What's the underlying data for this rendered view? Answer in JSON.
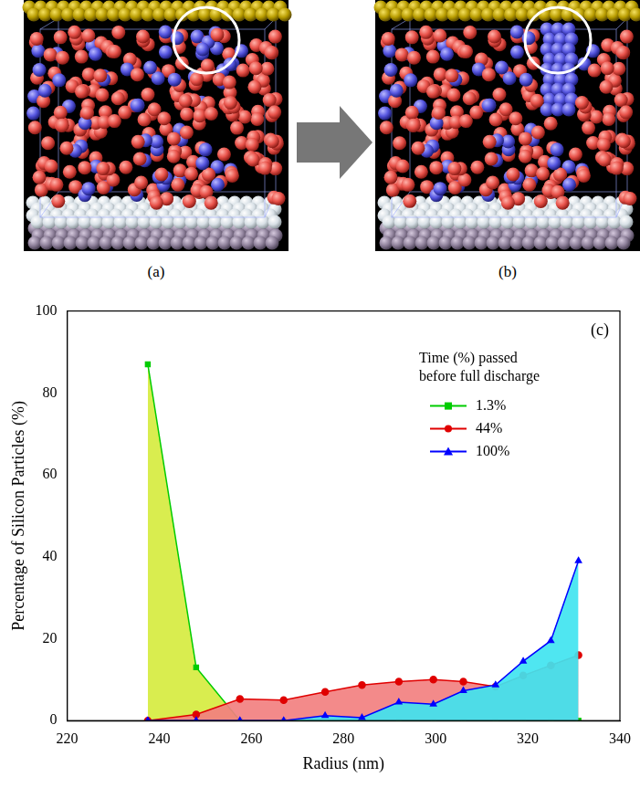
{
  "panels": [
    {
      "label": "(a)"
    },
    {
      "label": "(b)"
    }
  ],
  "chart_data": {
    "type": "area",
    "annotations": [
      "(c)"
    ],
    "x_label": "Radius (nm)",
    "y_label": "Percentage of Silicon Particles (%)",
    "legend_title": [
      "Time (%) passed",
      "before full discharge"
    ],
    "x": [
      237.5,
      248,
      257.5,
      267,
      276,
      284,
      292,
      299.5,
      306,
      313,
      319,
      325,
      331
    ],
    "series": [
      {
        "name": "1.3%",
        "color": "#00cc00",
        "marker": "square",
        "values": [
          87,
          13,
          0,
          0,
          0,
          0,
          0,
          0,
          0,
          0,
          0,
          0,
          0
        ]
      },
      {
        "name": "44%",
        "color": "#e00000",
        "marker": "circle",
        "values": [
          0,
          1.5,
          5.3,
          5,
          7,
          8.7,
          9.5,
          10,
          9.5,
          8.3,
          11,
          13.5,
          16
        ]
      },
      {
        "name": "100%",
        "color": "#0000ff",
        "marker": "triangle",
        "values": [
          0,
          0,
          0,
          0,
          1.2,
          0.7,
          4.5,
          4,
          7.3,
          8.7,
          14.5,
          19.5,
          39
        ]
      }
    ],
    "xlim": [
      220,
      340
    ],
    "xticks": [
      220,
      240,
      260,
      280,
      300,
      320,
      340
    ],
    "ylim": [
      0,
      100
    ],
    "yticks": [
      0,
      20,
      40,
      60,
      80,
      100
    ],
    "grid": false,
    "legend": "upper right"
  }
}
